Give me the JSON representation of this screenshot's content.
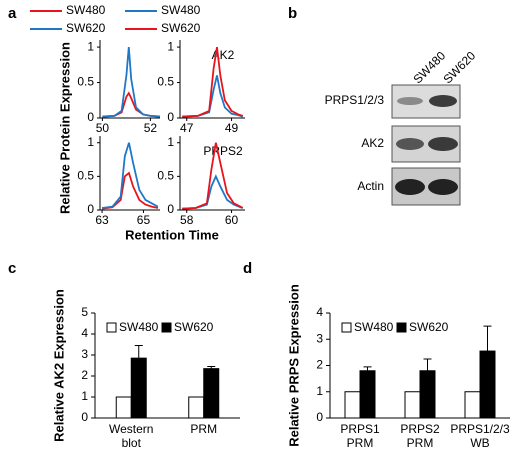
{
  "panel_a": {
    "label": "a",
    "ylabel": "Relative Protein Expression",
    "xlabel": "Retention Time"
  },
  "panel_b": {
    "label": "b",
    "columns": [
      "SW480",
      "SW620"
    ],
    "rows": [
      "PRPS1/2/3",
      "AK2",
      "Actin"
    ]
  },
  "chart_data": [
    {
      "type": "line",
      "x": [
        50,
        50.5,
        50.8,
        51,
        51.1,
        51.2,
        51.4,
        51.7,
        52,
        52.4
      ],
      "series": [
        {
          "name": "SW480",
          "color": "#e8141c",
          "values": [
            0.02,
            0.03,
            0.08,
            0.3,
            0.35,
            0.28,
            0.12,
            0.05,
            0.03,
            0.02
          ]
        },
        {
          "name": "SW620",
          "color": "#1f77c8",
          "values": [
            0.02,
            0.03,
            0.1,
            0.6,
            1.0,
            0.55,
            0.15,
            0.05,
            0.03,
            0.02
          ]
        }
      ],
      "xlim": [
        49.9,
        52.4
      ],
      "xticks": [
        50,
        52
      ],
      "ylim": [
        0,
        1.1
      ],
      "yticks": [
        0,
        0.5,
        1
      ]
    },
    {
      "type": "line",
      "title": "AK2",
      "x": [
        46.8,
        47.5,
        48,
        48.2,
        48.35,
        48.5,
        48.7,
        49,
        49.3,
        49.5
      ],
      "series": [
        {
          "name": "SW480",
          "color": "#1f77c8",
          "values": [
            0.02,
            0.03,
            0.08,
            0.4,
            0.6,
            0.35,
            0.15,
            0.06,
            0.04,
            0.02
          ]
        },
        {
          "name": "SW620",
          "color": "#e8141c",
          "values": [
            0.02,
            0.03,
            0.1,
            0.7,
            1.0,
            0.6,
            0.25,
            0.1,
            0.05,
            0.03
          ]
        }
      ],
      "xlim": [
        46.7,
        49.6
      ],
      "xticks": [
        47,
        49
      ],
      "ylim": [
        0,
        1.1
      ],
      "yticks": [
        0,
        0.5,
        1
      ]
    },
    {
      "type": "line",
      "x": [
        63,
        63.5,
        63.9,
        64.1,
        64.3,
        64.5,
        64.8,
        65.1,
        65.4,
        65.7
      ],
      "series": [
        {
          "color": "#e8141c",
          "values": [
            0.02,
            0.04,
            0.15,
            0.5,
            0.55,
            0.35,
            0.15,
            0.08,
            0.05,
            0.03
          ]
        },
        {
          "color": "#1f77c8",
          "values": [
            0.03,
            0.05,
            0.2,
            0.8,
            1.0,
            0.7,
            0.3,
            0.15,
            0.1,
            0.05
          ]
        }
      ],
      "xlim": [
        62.9,
        65.8
      ],
      "xticks": [
        63,
        65
      ],
      "ylim": [
        0,
        1.1
      ],
      "yticks": [
        0,
        0.5,
        1
      ]
    },
    {
      "type": "line",
      "title": "PRPS2",
      "x": [
        57.8,
        58.4,
        58.9,
        59.1,
        59.3,
        59.5,
        59.8,
        60.1,
        60.4,
        60.5
      ],
      "series": [
        {
          "color": "#1f77c8",
          "values": [
            0.02,
            0.03,
            0.08,
            0.35,
            0.5,
            0.35,
            0.15,
            0.08,
            0.04,
            0.03
          ]
        },
        {
          "color": "#e8141c",
          "values": [
            0.02,
            0.03,
            0.1,
            0.6,
            1.0,
            0.7,
            0.25,
            0.1,
            0.05,
            0.03
          ]
        }
      ],
      "xlim": [
        57.7,
        60.6
      ],
      "xticks": [
        58,
        60
      ],
      "ylim": [
        0,
        1.1
      ],
      "yticks": [
        0,
        0.5,
        1
      ]
    },
    {
      "type": "bar",
      "panel": "c",
      "ylabel": "Relative AK2 Expression",
      "categories": [
        "Western blot",
        "PRM"
      ],
      "series": [
        {
          "name": "SW480",
          "color": "#ffffff",
          "values": [
            1,
            1
          ]
        },
        {
          "name": "SW620",
          "color": "#000000",
          "values": [
            2.85,
            2.35
          ],
          "errors": [
            0.6,
            0.1
          ]
        }
      ],
      "ylim": [
        0,
        5
      ],
      "yticks": [
        0,
        1,
        2,
        3,
        4,
        5
      ]
    },
    {
      "type": "bar",
      "panel": "d",
      "ylabel": "Relative PRPS Expression",
      "categories": [
        "PRPS1 PRM",
        "PRPS2 PRM",
        "PRPS1/2/3 WB"
      ],
      "series": [
        {
          "name": "SW480",
          "color": "#ffffff",
          "values": [
            1,
            1,
            1
          ]
        },
        {
          "name": "SW620",
          "color": "#000000",
          "values": [
            1.8,
            1.8,
            2.55
          ],
          "errors": [
            0.15,
            0.45,
            0.95
          ]
        }
      ],
      "ylim": [
        0,
        4
      ],
      "yticks": [
        0,
        1,
        2,
        3,
        4
      ]
    }
  ]
}
